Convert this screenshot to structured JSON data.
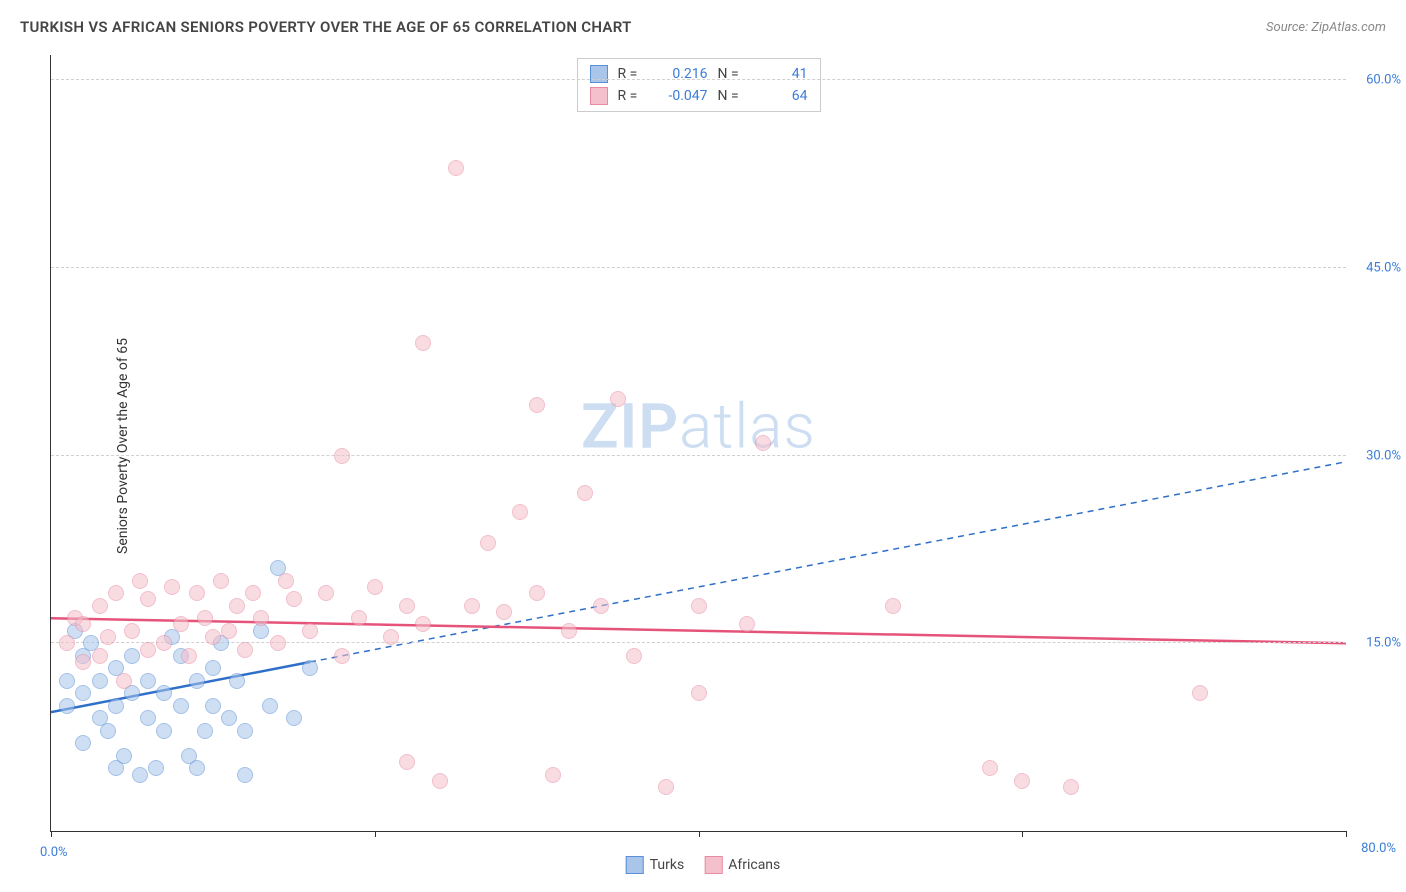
{
  "title": "TURKISH VS AFRICAN SENIORS POVERTY OVER THE AGE OF 65 CORRELATION CHART",
  "source_label": "Source: ZipAtlas.com",
  "watermark": {
    "bold": "ZIP",
    "light": "atlas"
  },
  "y_axis_title": "Seniors Poverty Over the Age of 65",
  "chart": {
    "type": "scatter",
    "background_color": "#ffffff",
    "grid_color": "#d0d0d0",
    "grid_dash": "4,4",
    "axis_color": "#333333",
    "tick_label_color": "#3b7dd8",
    "tick_fontsize": 13,
    "xlim": [
      0,
      80
    ],
    "ylim": [
      0,
      62
    ],
    "x_ticks": [
      0,
      20,
      40,
      60,
      80
    ],
    "x_tick_labels_shown": {
      "min": "0.0%",
      "max": "80.0%"
    },
    "y_ticks": [
      15,
      30,
      45,
      60
    ],
    "y_tick_labels": [
      "15.0%",
      "30.0%",
      "45.0%",
      "60.0%"
    ],
    "marker_radius": 8,
    "marker_stroke_width": 1.5,
    "series": [
      {
        "name": "Turks",
        "fill": "#a9c6ea",
        "stroke": "#5a8fd6",
        "fill_opacity": 0.55,
        "R": "0.216",
        "N": "41",
        "trend": {
          "color": "#2e6fc9",
          "width": 2.5,
          "solid_end_x": 16,
          "dash_start_x": 16,
          "y_at_x0": 9.5,
          "y_at_x80": 29.5,
          "dash": "6,5"
        },
        "points": [
          [
            1,
            12
          ],
          [
            1,
            10
          ],
          [
            1.5,
            16
          ],
          [
            2,
            14
          ],
          [
            2,
            11
          ],
          [
            2,
            7
          ],
          [
            2.5,
            15
          ],
          [
            3,
            9
          ],
          [
            3,
            12
          ],
          [
            3.5,
            8
          ],
          [
            4,
            5
          ],
          [
            4,
            10
          ],
          [
            4,
            13
          ],
          [
            4.5,
            6
          ],
          [
            5,
            11
          ],
          [
            5,
            14
          ],
          [
            5.5,
            4.5
          ],
          [
            6,
            9
          ],
          [
            6,
            12
          ],
          [
            6.5,
            5
          ],
          [
            7,
            8
          ],
          [
            7,
            11
          ],
          [
            7.5,
            15.5
          ],
          [
            8,
            10
          ],
          [
            8,
            14
          ],
          [
            8.5,
            6
          ],
          [
            9,
            12
          ],
          [
            9,
            5
          ],
          [
            9.5,
            8
          ],
          [
            10,
            13
          ],
          [
            10,
            10
          ],
          [
            10.5,
            15
          ],
          [
            11,
            9
          ],
          [
            11.5,
            12
          ],
          [
            12,
            8
          ],
          [
            12,
            4.5
          ],
          [
            13,
            16
          ],
          [
            13.5,
            10
          ],
          [
            14,
            21
          ],
          [
            15,
            9
          ],
          [
            16,
            13
          ]
        ]
      },
      {
        "name": "Africans",
        "fill": "#f4c0cc",
        "stroke": "#e98ba3",
        "fill_opacity": 0.55,
        "R": "-0.047",
        "N": "64",
        "trend": {
          "color": "#e6537a",
          "width": 2.5,
          "solid_end_x": 80,
          "y_at_x0": 17,
          "y_at_x80": 15
        },
        "points": [
          [
            1,
            15
          ],
          [
            1.5,
            17
          ],
          [
            2,
            13.5
          ],
          [
            2,
            16.5
          ],
          [
            3,
            14
          ],
          [
            3,
            18
          ],
          [
            3.5,
            15.5
          ],
          [
            4,
            19
          ],
          [
            4.5,
            12
          ],
          [
            5,
            16
          ],
          [
            5.5,
            20
          ],
          [
            6,
            14.5
          ],
          [
            6,
            18.5
          ],
          [
            7,
            15
          ],
          [
            7.5,
            19.5
          ],
          [
            8,
            16.5
          ],
          [
            8.5,
            14
          ],
          [
            9,
            19
          ],
          [
            9.5,
            17
          ],
          [
            10,
            15.5
          ],
          [
            10.5,
            20
          ],
          [
            11,
            16
          ],
          [
            11.5,
            18
          ],
          [
            12,
            14.5
          ],
          [
            12.5,
            19
          ],
          [
            13,
            17
          ],
          [
            14,
            15
          ],
          [
            14.5,
            20
          ],
          [
            15,
            18.5
          ],
          [
            16,
            16
          ],
          [
            17,
            19
          ],
          [
            18,
            14
          ],
          [
            18,
            30
          ],
          [
            19,
            17
          ],
          [
            20,
            19.5
          ],
          [
            21,
            15.5
          ],
          [
            22,
            18
          ],
          [
            22,
            5.5
          ],
          [
            23,
            16.5
          ],
          [
            23,
            39
          ],
          [
            24,
            4
          ],
          [
            25,
            53
          ],
          [
            26,
            18
          ],
          [
            27,
            23
          ],
          [
            28,
            17.5
          ],
          [
            29,
            25.5
          ],
          [
            30,
            34
          ],
          [
            30,
            19
          ],
          [
            31,
            4.5
          ],
          [
            32,
            16
          ],
          [
            33,
            27
          ],
          [
            34,
            18
          ],
          [
            35,
            34.5
          ],
          [
            36,
            14
          ],
          [
            38,
            3.5
          ],
          [
            40,
            18
          ],
          [
            40,
            11
          ],
          [
            43,
            16.5
          ],
          [
            44,
            31
          ],
          [
            52,
            18
          ],
          [
            58,
            5
          ],
          [
            60,
            4
          ],
          [
            63,
            3.5
          ],
          [
            71,
            11
          ]
        ]
      }
    ]
  },
  "legend_top": {
    "r_label": "R =",
    "n_label": "N ="
  },
  "legend_bottom": {
    "items": [
      "Turks",
      "Africans"
    ]
  }
}
